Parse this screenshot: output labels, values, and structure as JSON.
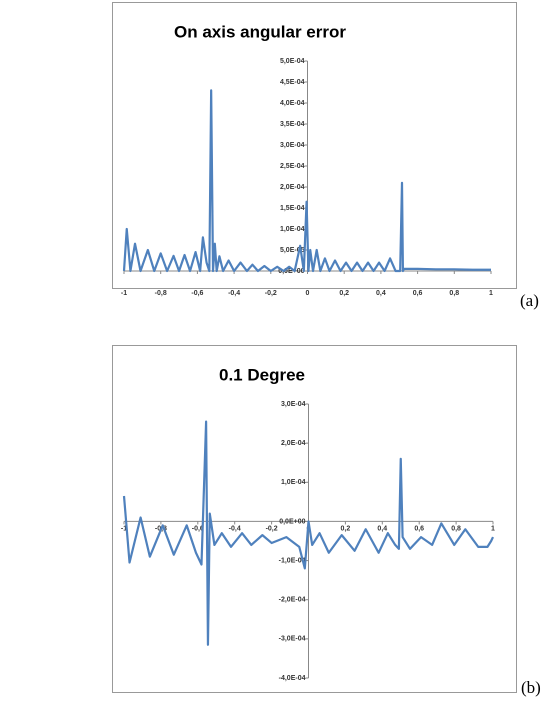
{
  "chart_data": [
    {
      "type": "line",
      "title": "On  axis angular error",
      "panel_label": "(a)",
      "x": [
        -1,
        -0.985,
        -0.965,
        -0.94,
        -0.91,
        -0.87,
        -0.835,
        -0.8,
        -0.765,
        -0.73,
        -0.7,
        -0.67,
        -0.64,
        -0.61,
        -0.585,
        -0.57,
        -0.55,
        -0.535,
        -0.525,
        -0.515,
        -0.505,
        -0.495,
        -0.48,
        -0.46,
        -0.43,
        -0.4,
        -0.365,
        -0.33,
        -0.3,
        -0.27,
        -0.235,
        -0.2,
        -0.165,
        -0.13,
        -0.1,
        -0.07,
        -0.04,
        -0.02,
        -0.005,
        0.005,
        0.015,
        0.03,
        0.05,
        0.07,
        0.095,
        0.12,
        0.15,
        0.18,
        0.21,
        0.24,
        0.27,
        0.3,
        0.33,
        0.36,
        0.39,
        0.42,
        0.45,
        0.48,
        0.505,
        0.515,
        0.52,
        0.525,
        0.535,
        0.6,
        0.7,
        0.8,
        0.9,
        1
      ],
      "series": [
        {
          "color": "#4f81bd",
          "values": [
            0,
            0.0001,
            0,
            6.5e-05,
            0,
            5e-05,
            0,
            4.2e-05,
            0,
            3.6e-05,
            0,
            3.8e-05,
            0,
            4.5e-05,
            0,
            8e-05,
            2e-05,
            0,
            0.00043,
            0,
            6.5e-05,
            0,
            3.5e-05,
            0,
            2.5e-05,
            0,
            2e-05,
            0,
            1.5e-05,
            0,
            1.2e-05,
            0,
            1e-05,
            0,
            1e-05,
            0,
            6e-05,
            0,
            0.000165,
            0,
            5e-05,
            0,
            5e-05,
            0,
            3e-05,
            0,
            2.5e-05,
            0,
            2e-05,
            0,
            2e-05,
            0,
            2e-05,
            0,
            2e-05,
            0,
            3e-05,
            0,
            0,
            0.00021,
            0,
            5e-06,
            5e-06,
            5e-06,
            4e-06,
            4e-06,
            3e-06,
            3e-06
          ]
        }
      ],
      "xlim": [
        -1,
        1
      ],
      "xticks": [
        -1,
        {
          "value": -0.8,
          "label": "-0,8"
        },
        {
          "value": -0.6,
          "label": "-0,6"
        },
        {
          "value": -0.4,
          "label": "-0,4"
        },
        {
          "value": -0.2,
          "label": "-0,2"
        },
        0,
        {
          "value": 0.2,
          "label": "0,2"
        },
        {
          "value": 0.4,
          "label": "0,4"
        },
        {
          "value": 0.6,
          "label": "0,6"
        },
        {
          "value": 0.8,
          "label": "0,8"
        },
        1
      ],
      "ylim": [
        0,
        0.0005
      ],
      "yticks": [
        {
          "value": 0,
          "label": "0,0E+00"
        },
        {
          "value": 5e-05,
          "label": "5,0E-05"
        },
        {
          "value": 0.0001,
          "label": "1,0E-04"
        },
        {
          "value": 0.00015,
          "label": "1,5E-04"
        },
        {
          "value": 0.0002,
          "label": "2,0E-04"
        },
        {
          "value": 0.00025,
          "label": "2,5E-04"
        },
        {
          "value": 0.0003,
          "label": "3,0E-04"
        },
        {
          "value": 0.00035,
          "label": "3,5E-04"
        },
        {
          "value": 0.0004,
          "label": "4,0E-04"
        },
        {
          "value": 0.00045,
          "label": "4,5E-04"
        },
        {
          "value": 0.0005,
          "label": "5,0E-04"
        }
      ]
    },
    {
      "type": "line",
      "title": "0.1 Degree",
      "panel_label": "(b)",
      "x": [
        -1,
        -0.97,
        -0.91,
        -0.86,
        -0.79,
        -0.73,
        -0.66,
        -0.61,
        -0.58,
        -0.555,
        -0.545,
        -0.535,
        -0.51,
        -0.47,
        -0.42,
        -0.36,
        -0.31,
        -0.25,
        -0.2,
        -0.12,
        -0.05,
        -0.02,
        0,
        0.02,
        0.06,
        0.11,
        0.18,
        0.25,
        0.31,
        0.38,
        0.43,
        0.47,
        0.49,
        0.5,
        0.51,
        0.55,
        0.61,
        0.67,
        0.72,
        0.79,
        0.85,
        0.92,
        0.97,
        0.99,
        1
      ],
      "series": [
        {
          "color": "#4f81bd",
          "values": [
            6.5e-05,
            -0.000105,
            1e-05,
            -9e-05,
            -1e-05,
            -8.5e-05,
            -1e-05,
            -8e-05,
            -0.00011,
            0.000255,
            -0.000315,
            2e-05,
            -6e-05,
            -3e-05,
            -6.5e-05,
            -3e-05,
            -6e-05,
            -3.5e-05,
            -5.5e-05,
            -4e-05,
            -6.5e-05,
            -0.00012,
            0,
            -6e-05,
            -3e-05,
            -8e-05,
            -3.5e-05,
            -7.5e-05,
            -2e-05,
            -8e-05,
            -3e-05,
            -6e-05,
            -7e-05,
            0.00016,
            -4e-05,
            -7e-05,
            -4e-05,
            -6e-05,
            -5e-06,
            -6e-05,
            -2e-05,
            -6.5e-05,
            -6.5e-05,
            -5e-05,
            -4e-05
          ]
        }
      ],
      "xlim": [
        -1,
        1
      ],
      "xticks": [
        -1,
        {
          "value": -0.8,
          "label": "-0,8"
        },
        {
          "value": -0.6,
          "label": "-0,6"
        },
        {
          "value": -0.4,
          "label": "-0,4"
        },
        {
          "value": -0.2,
          "label": "-0,2"
        },
        0,
        {
          "value": 0.2,
          "label": "0,2"
        },
        {
          "value": 0.4,
          "label": "0,4"
        },
        {
          "value": 0.6,
          "label": "0,6"
        },
        {
          "value": 0.8,
          "label": "0,8"
        },
        1
      ],
      "ylim": [
        -0.0004,
        0.0003
      ],
      "yticks": [
        {
          "value": -0.0004,
          "label": "-4,0E-04"
        },
        {
          "value": -0.0003,
          "label": "-3,0E-04"
        },
        {
          "value": -0.0002,
          "label": "-2,0E-04"
        },
        {
          "value": -0.0001,
          "label": "-1,0E-04"
        },
        {
          "value": 0,
          "label": "0,0E+00"
        },
        {
          "value": 0.0001,
          "label": "1,0E-04"
        },
        {
          "value": 0.0002,
          "label": "2,0E-04"
        },
        {
          "value": 0.0003,
          "label": "3,0E-04"
        }
      ]
    }
  ]
}
